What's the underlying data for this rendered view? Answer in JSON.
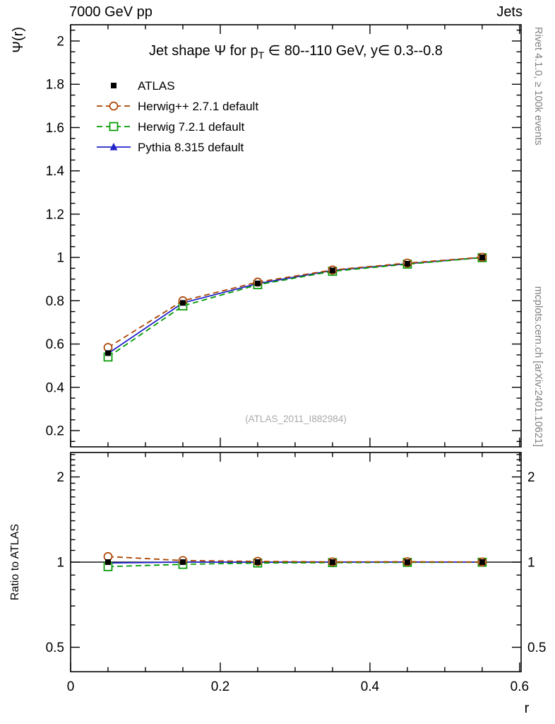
{
  "header": {
    "left": "7000 GeV pp",
    "right": "Jets"
  },
  "sidebar_texts": {
    "top": "Rivet 4.1.0, ≥ 100k events",
    "bottom": "mcplots.cern.ch [arXiv:2401.10621]"
  },
  "watermark": "(ATLAS_2011_I882984)",
  "chart_data": {
    "type": "line",
    "title": "Jet shape Ψ for p_{T} ∈ 80--110 GeV, y∈ 0.3--0.8",
    "xlabel": "r",
    "ylabel": "Ψ(r)",
    "ratio_ylabel": "Ratio to ATLAS",
    "xlim": [
      0,
      0.602
    ],
    "ylim": [
      0.125,
      2.075
    ],
    "ratio_ylim": [
      0.41,
      2.44
    ],
    "ratio_scale": "log",
    "grid": false,
    "legend_position": "top-left",
    "x_ticks": [
      0,
      0.2,
      0.4,
      0.6
    ],
    "y_ticks": [
      0.2,
      0.4,
      0.6,
      0.8,
      1,
      1.2,
      1.4,
      1.6,
      1.8,
      2
    ],
    "ratio_ticks": [
      0.5,
      1,
      2
    ],
    "x": [
      0.05,
      0.15,
      0.25,
      0.35,
      0.45,
      0.55
    ],
    "series": [
      {
        "name": "ATLAS",
        "color": "#000000",
        "marker": "square-filled",
        "line": "none",
        "values": [
          0.558,
          0.79,
          0.88,
          0.94,
          0.971,
          1.0
        ],
        "ratio": [
          1.0,
          1.0,
          1.0,
          1.0,
          1.0,
          1.0
        ]
      },
      {
        "name": "Herwig++ 2.7.1 default",
        "color": "#aa4400",
        "marker": "circle-open",
        "line": "dashed",
        "values": [
          0.584,
          0.8,
          0.886,
          0.942,
          0.974,
          1.001
        ],
        "ratio": [
          1.046,
          1.013,
          1.006,
          1.002,
          1.003,
          1.001
        ]
      },
      {
        "name": "Herwig 7.2.1 default",
        "color": "#009900",
        "marker": "square-open",
        "line": "dashed",
        "values": [
          0.54,
          0.776,
          0.874,
          0.936,
          0.969,
          0.999
        ],
        "ratio": [
          0.964,
          0.982,
          0.993,
          0.996,
          0.998,
          0.999
        ]
      },
      {
        "name": "Pythia 8.315 default",
        "color": "#2222cc",
        "marker": "triangle-filled",
        "line": "solid",
        "values": [
          0.556,
          0.79,
          0.879,
          0.94,
          0.971,
          1.0
        ],
        "ratio": [
          0.993,
          1.0,
          0.999,
          1.0,
          1.0,
          1.0
        ]
      }
    ]
  }
}
